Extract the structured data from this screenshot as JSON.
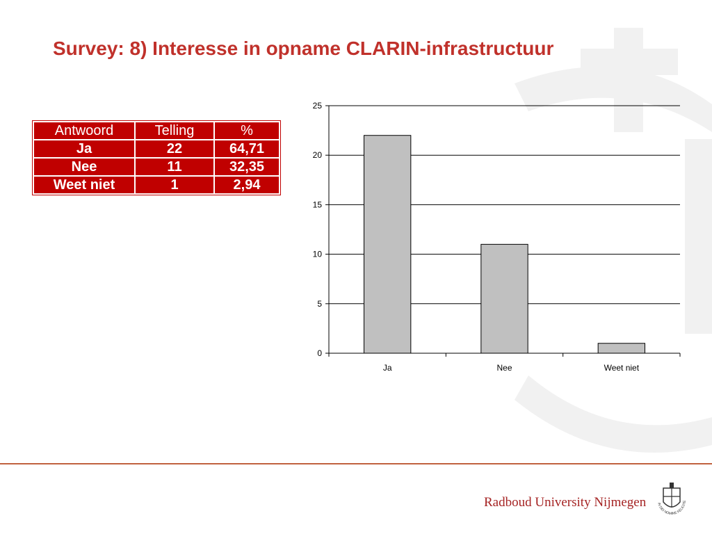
{
  "slide": {
    "title": "Survey: 8) Interesse in opname CLARIN-infrastructuur",
    "accent_color": "#c0312b",
    "table_color": "#c00000"
  },
  "table": {
    "headers": [
      "Antwoord",
      "Telling",
      "%"
    ],
    "rows": [
      [
        "Ja",
        "22",
        "64,71"
      ],
      [
        "Nee",
        "11",
        "32,35"
      ],
      [
        "Weet niet",
        "1",
        "2,94"
      ]
    ]
  },
  "chart_data": {
    "type": "bar",
    "categories": [
      "Ja",
      "Nee",
      "Weet niet"
    ],
    "values": [
      22,
      11,
      1
    ],
    "ylim": [
      0,
      25
    ],
    "yticks": [
      0,
      5,
      10,
      15,
      20,
      25
    ],
    "title": "",
    "xlabel": "",
    "ylabel": "",
    "grid": true,
    "bar_color": "#c0c0c0"
  },
  "footer": {
    "university": "Radboud University Nijmegen",
    "logo": "radboud-seal-icon",
    "logo_text": "IN DEI NOMINE FELICITER"
  }
}
